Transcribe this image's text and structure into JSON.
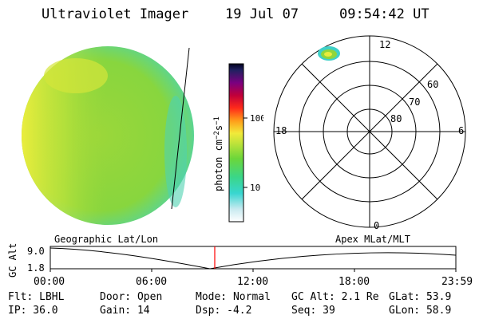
{
  "header": {
    "instrument": "Ultraviolet Imager",
    "date": "19 Jul 07",
    "time": "09:54:42 UT"
  },
  "colorbar": {
    "unit_text": "photon cm",
    "unit_sup1": "−2",
    "unit_s": "s",
    "unit_sup2": "−1",
    "ticks": [
      "100",
      "10"
    ]
  },
  "polar": {
    "mlt_labels": {
      "top": "12",
      "left": "18",
      "right": "6",
      "bottom": "0"
    },
    "lat_labels": [
      "60",
      "70",
      "80"
    ]
  },
  "altitude_plot": {
    "ylabel": "GC Alt",
    "yticks": [
      "9.0",
      "1.8"
    ],
    "left_title": "Geographic Lat/Lon",
    "right_title": "Apex MLat/MLT",
    "xticks": [
      "00:00",
      "06:00",
      "12:00",
      "18:00",
      "23:59"
    ],
    "marker_time": "09:54"
  },
  "status": {
    "row1": {
      "flt": "Flt: LBHL",
      "door": "Door: Open",
      "mode": "Mode: Normal",
      "gcalt": "GC Alt: 2.1 Re",
      "glat": "GLat:  53.9"
    },
    "row2": {
      "ip": "IP: 36.0",
      "gain": "Gain: 14",
      "dsp": "Dsp:    -4.2",
      "seq": "Seq: 39",
      "glon": "GLon:  58.9"
    }
  },
  "colors": {
    "disk_main": "#8fd63a",
    "disk_edge": "#3fd0c8",
    "disk_bright": "#e9ec3c",
    "marker": "#ff0000"
  }
}
